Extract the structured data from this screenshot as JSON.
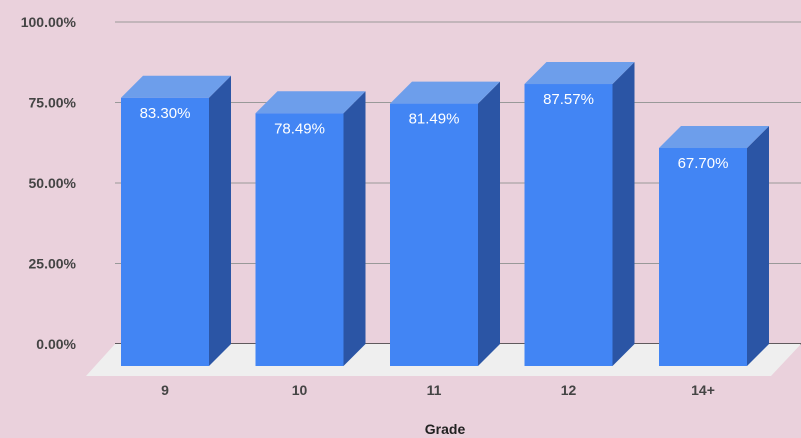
{
  "chart_data": {
    "type": "bar",
    "style": "3d",
    "categories": [
      "9",
      "10",
      "11",
      "12",
      "14+"
    ],
    "values": [
      83.3,
      78.49,
      81.49,
      87.57,
      67.7
    ],
    "data_labels": [
      "83.30%",
      "78.49%",
      "81.49%",
      "87.57%",
      "67.70%"
    ],
    "title": "",
    "xlabel": "Grade",
    "ylabel": "",
    "ylim": [
      0,
      100
    ],
    "yticks": [
      0,
      25,
      50,
      75,
      100
    ],
    "ytick_labels": [
      "0.00%",
      "25.00%",
      "50.00%",
      "75.00%",
      "100.00%"
    ],
    "grid": true,
    "legend": "none",
    "colors": {
      "bar_front": "#4285f4",
      "bar_top": "#6d9eeb",
      "bar_side": "#2b55a5",
      "floor": "#efefef",
      "background": "#ead1dc",
      "gridline": "#999999"
    }
  }
}
